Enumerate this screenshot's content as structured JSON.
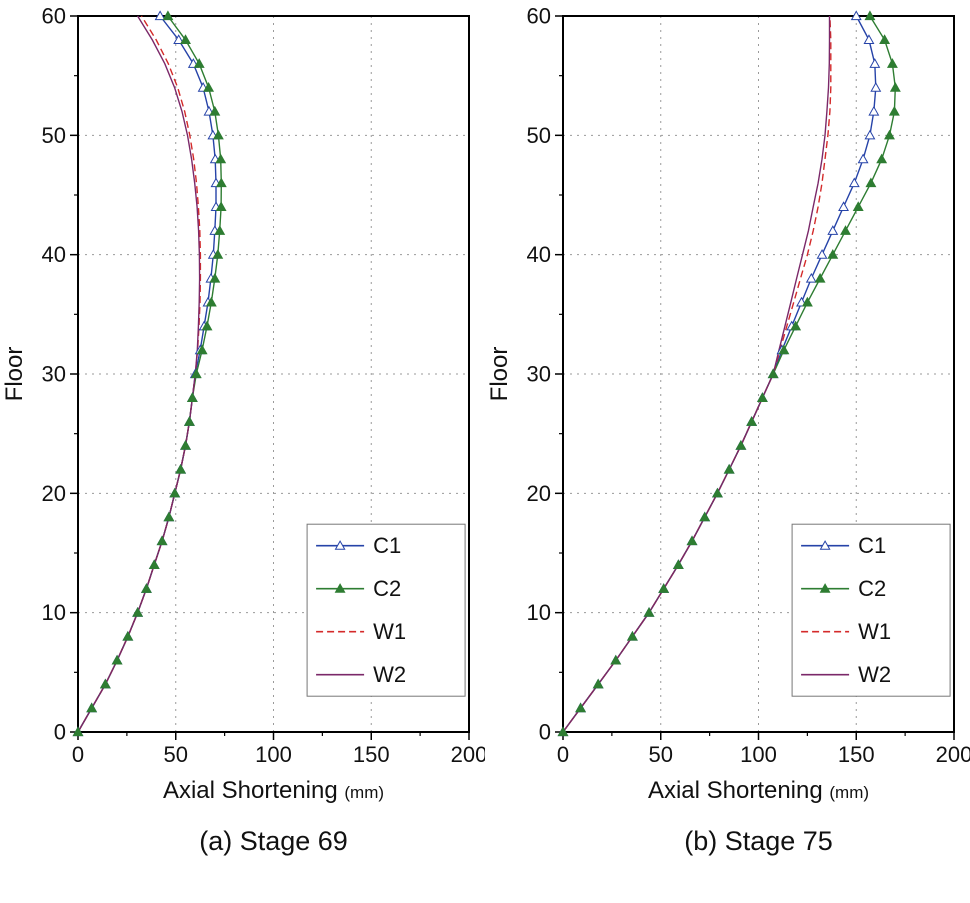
{
  "style": {
    "grid_color": "#9a9a9a",
    "axis_color": "#000000",
    "background": "#ffffff",
    "legend_border": "#777777"
  },
  "chart_data": [
    {
      "type": "line",
      "caption": "(a) Stage 69",
      "xlabel": "Axial Shortening",
      "xlabel_unit": "(mm)",
      "ylabel": "Floor",
      "xlim": [
        0,
        200
      ],
      "ylim": [
        0,
        60
      ],
      "xticks": [
        0,
        50,
        100,
        150,
        200
      ],
      "yticks": [
        0,
        10,
        20,
        30,
        40,
        50,
        60
      ],
      "xminor": [
        25,
        75,
        125,
        175
      ],
      "yminor": [
        5,
        15,
        25,
        35,
        45,
        55
      ],
      "grid": true,
      "legend_position": "bottom-right",
      "floors": [
        0,
        2,
        4,
        6,
        8,
        10,
        12,
        14,
        16,
        18,
        20,
        22,
        24,
        26,
        28,
        30,
        32,
        34,
        36,
        38,
        40,
        42,
        44,
        46,
        48,
        50,
        52,
        54,
        56,
        58,
        60
      ],
      "series": [
        {
          "name": "C1",
          "color": "#2643a8",
          "marker": "triangle-open",
          "dash": null,
          "values": [
            0,
            7,
            14,
            20,
            25.5,
            30.5,
            35,
            39,
            43,
            46.5,
            49.5,
            52.5,
            55,
            57,
            58.5,
            60,
            62.5,
            64.5,
            66.5,
            68,
            69.2,
            70,
            70.6,
            70.6,
            70.2,
            69,
            67,
            64,
            59,
            51.5,
            42
          ]
        },
        {
          "name": "C2",
          "color": "#2e7d32",
          "marker": "triangle-filled",
          "dash": null,
          "values": [
            0,
            7,
            14,
            20,
            25.5,
            30.5,
            35,
            39,
            43,
            46.5,
            49.5,
            52.5,
            55,
            57,
            58.5,
            60.5,
            63.5,
            66,
            68.2,
            70,
            71.5,
            72.5,
            73.2,
            73.3,
            73,
            71.8,
            70,
            66.8,
            62,
            55,
            46
          ]
        },
        {
          "name": "W1",
          "color": "#d42a2a",
          "marker": null,
          "dash": "7 4",
          "values": [
            0,
            7,
            14,
            20,
            25.5,
            30.5,
            35,
            39,
            43,
            46.5,
            49.5,
            52.5,
            55,
            57,
            58.5,
            60,
            61.2,
            61.9,
            62.4,
            62.6,
            62.6,
            62.3,
            61.6,
            60.6,
            59.2,
            57.2,
            54.6,
            51,
            46.2,
            40,
            32.5
          ]
        },
        {
          "name": "W2",
          "color": "#7b2869",
          "marker": null,
          "dash": null,
          "values": [
            0,
            7,
            14,
            20,
            25.5,
            30.5,
            35,
            39,
            43,
            46.5,
            49.5,
            52.5,
            55,
            57,
            58.5,
            60,
            61,
            61.6,
            62,
            62.2,
            62.1,
            61.7,
            60.9,
            59.7,
            58.1,
            56,
            53.2,
            49.4,
            44.4,
            38,
            30.5
          ]
        }
      ]
    },
    {
      "type": "line",
      "caption": "(b) Stage 75",
      "xlabel": "Axial Shortening",
      "xlabel_unit": "(mm)",
      "ylabel": "Floor",
      "xlim": [
        0,
        200
      ],
      "ylim": [
        0,
        60
      ],
      "xticks": [
        0,
        50,
        100,
        150,
        200
      ],
      "yticks": [
        0,
        10,
        20,
        30,
        40,
        50,
        60
      ],
      "xminor": [
        25,
        75,
        125,
        175
      ],
      "yminor": [
        5,
        15,
        25,
        35,
        45,
        55
      ],
      "grid": true,
      "legend_position": "bottom-right",
      "floors": [
        0,
        2,
        4,
        6,
        8,
        10,
        12,
        14,
        16,
        18,
        20,
        22,
        24,
        26,
        28,
        30,
        32,
        34,
        36,
        38,
        40,
        42,
        44,
        46,
        48,
        50,
        52,
        54,
        56,
        58,
        60
      ],
      "series": [
        {
          "name": "C1",
          "color": "#2643a8",
          "marker": "triangle-open",
          "dash": null,
          "values": [
            0,
            9,
            18,
            27,
            35.5,
            44,
            51.5,
            59,
            66,
            72.5,
            79,
            85,
            91,
            96.5,
            102,
            107.5,
            112,
            117,
            122,
            127,
            132.5,
            138,
            143.5,
            149,
            153.5,
            157,
            159,
            160,
            159.5,
            156.5,
            150
          ]
        },
        {
          "name": "C2",
          "color": "#2e7d32",
          "marker": "triangle-filled",
          "dash": null,
          "values": [
            0,
            9,
            18,
            27,
            35.5,
            44,
            51.5,
            59,
            66,
            72.5,
            79,
            85,
            91,
            96.5,
            102,
            107.5,
            113,
            119,
            125,
            131.5,
            138,
            144.5,
            151,
            157.5,
            163,
            167,
            169.5,
            170,
            168.5,
            164.5,
            157
          ]
        },
        {
          "name": "W1",
          "color": "#d42a2a",
          "marker": null,
          "dash": "7 4",
          "values": [
            0,
            9,
            18,
            27,
            35.5,
            44,
            51.5,
            59,
            66,
            72.5,
            79,
            85,
            91,
            96.5,
            102,
            107.5,
            111,
            114.5,
            118,
            121.5,
            125,
            128,
            130.5,
            132.5,
            134,
            135.5,
            136.5,
            137,
            137,
            137,
            136.5
          ]
        },
        {
          "name": "W2",
          "color": "#7b2869",
          "marker": null,
          "dash": null,
          "values": [
            0,
            9,
            18,
            27,
            35.5,
            44,
            51.5,
            59,
            66,
            72.5,
            79,
            85,
            91,
            96.5,
            102,
            107.5,
            110.5,
            113.5,
            116.5,
            119.5,
            122.5,
            125.5,
            128,
            130.5,
            132.5,
            134,
            135,
            135.8,
            136.2,
            136.3,
            136.3
          ]
        }
      ]
    }
  ]
}
